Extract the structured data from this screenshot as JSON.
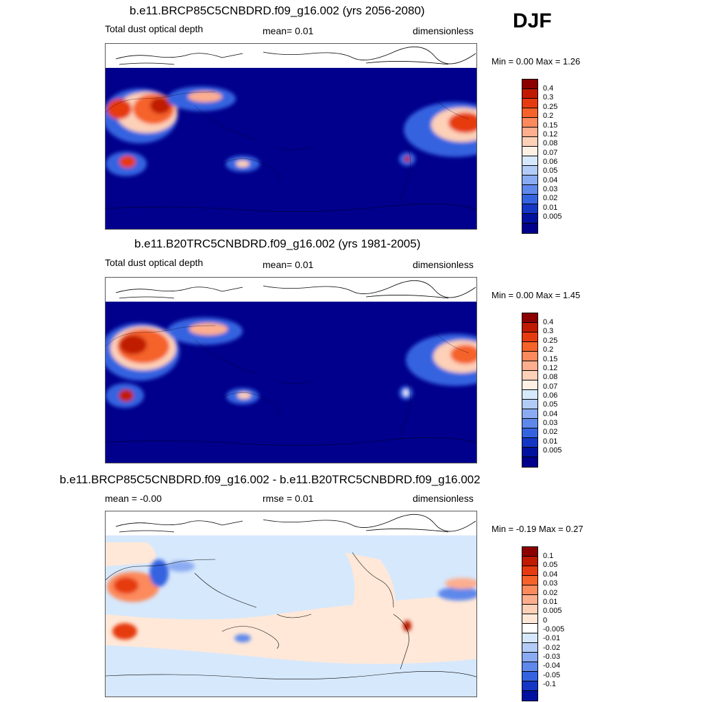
{
  "season": "DJF",
  "colors": {
    "ocean": "#00008c",
    "land_outline": "#000000"
  },
  "panels": [
    {
      "id": "future",
      "title": "b.e11.BRCP85C5CNBDRD.f09_g16.002 (yrs 2056-2080)",
      "left_label": "Total dust optical depth",
      "center_label": "mean=   0.01",
      "right_label": "dimensionless",
      "minmax": "Min =   0.00 Max =   1.26",
      "colorbar": {
        "labels": [
          "0.4",
          "0.3",
          "0.25",
          "0.2",
          "0.15",
          "0.12",
          "0.08",
          "0.07",
          "0.06",
          "0.05",
          "0.04",
          "0.03",
          "0.02",
          "0.01",
          "0.005"
        ],
        "colors": [
          "#8c0000",
          "#c01a00",
          "#e63b10",
          "#f5622a",
          "#fc8a5c",
          "#fdae8e",
          "#fdd0b8",
          "#fff0e6",
          "#d6e8fc",
          "#b3ccf7",
          "#8aabf2",
          "#5f88eb",
          "#3563e0",
          "#1436c4",
          "#0011a0",
          "#00008c"
        ]
      }
    },
    {
      "id": "historical",
      "title": "b.e11.B20TRC5CNBDRD.f09_g16.002 (yrs 1981-2005)",
      "left_label": "Total dust optical depth",
      "center_label": "mean=   0.01",
      "right_label": "dimensionless",
      "minmax": "Min =   0.00 Max =   1.45",
      "colorbar": {
        "labels": [
          "0.4",
          "0.3",
          "0.25",
          "0.2",
          "0.15",
          "0.12",
          "0.08",
          "0.07",
          "0.06",
          "0.05",
          "0.04",
          "0.03",
          "0.02",
          "0.01",
          "0.005"
        ],
        "colors": [
          "#8c0000",
          "#c01a00",
          "#e63b10",
          "#f5622a",
          "#fc8a5c",
          "#fdae8e",
          "#fdd0b8",
          "#fff0e6",
          "#d6e8fc",
          "#b3ccf7",
          "#8aabf2",
          "#5f88eb",
          "#3563e0",
          "#1436c4",
          "#0011a0",
          "#00008c"
        ]
      }
    },
    {
      "id": "difference",
      "title": "b.e11.BRCP85C5CNBDRD.f09_g16.002 - b.e11.B20TRC5CNBDRD.f09_g16.002",
      "left_label": "mean =  -0.00",
      "center_label": "rmse =   0.01",
      "right_label": "dimensionless",
      "minmax": "Min =  -0.19 Max =   0.27",
      "colorbar": {
        "labels": [
          "0.1",
          "0.05",
          "0.04",
          "0.03",
          "0.02",
          "0.01",
          "0.005",
          "0",
          "-0.005",
          "-0.01",
          "-0.02",
          "-0.03",
          "-0.04",
          "-0.05",
          "-0.1"
        ],
        "colors": [
          "#8c0000",
          "#c01a00",
          "#e63b10",
          "#f5622a",
          "#fc8a5c",
          "#fdae8e",
          "#fdd0b8",
          "#ffe8d8",
          "#ffffff",
          "#d6e8fc",
          "#b3ccf7",
          "#8aabf2",
          "#5f88eb",
          "#3563e0",
          "#1436c4",
          "#0011a0"
        ]
      }
    }
  ]
}
